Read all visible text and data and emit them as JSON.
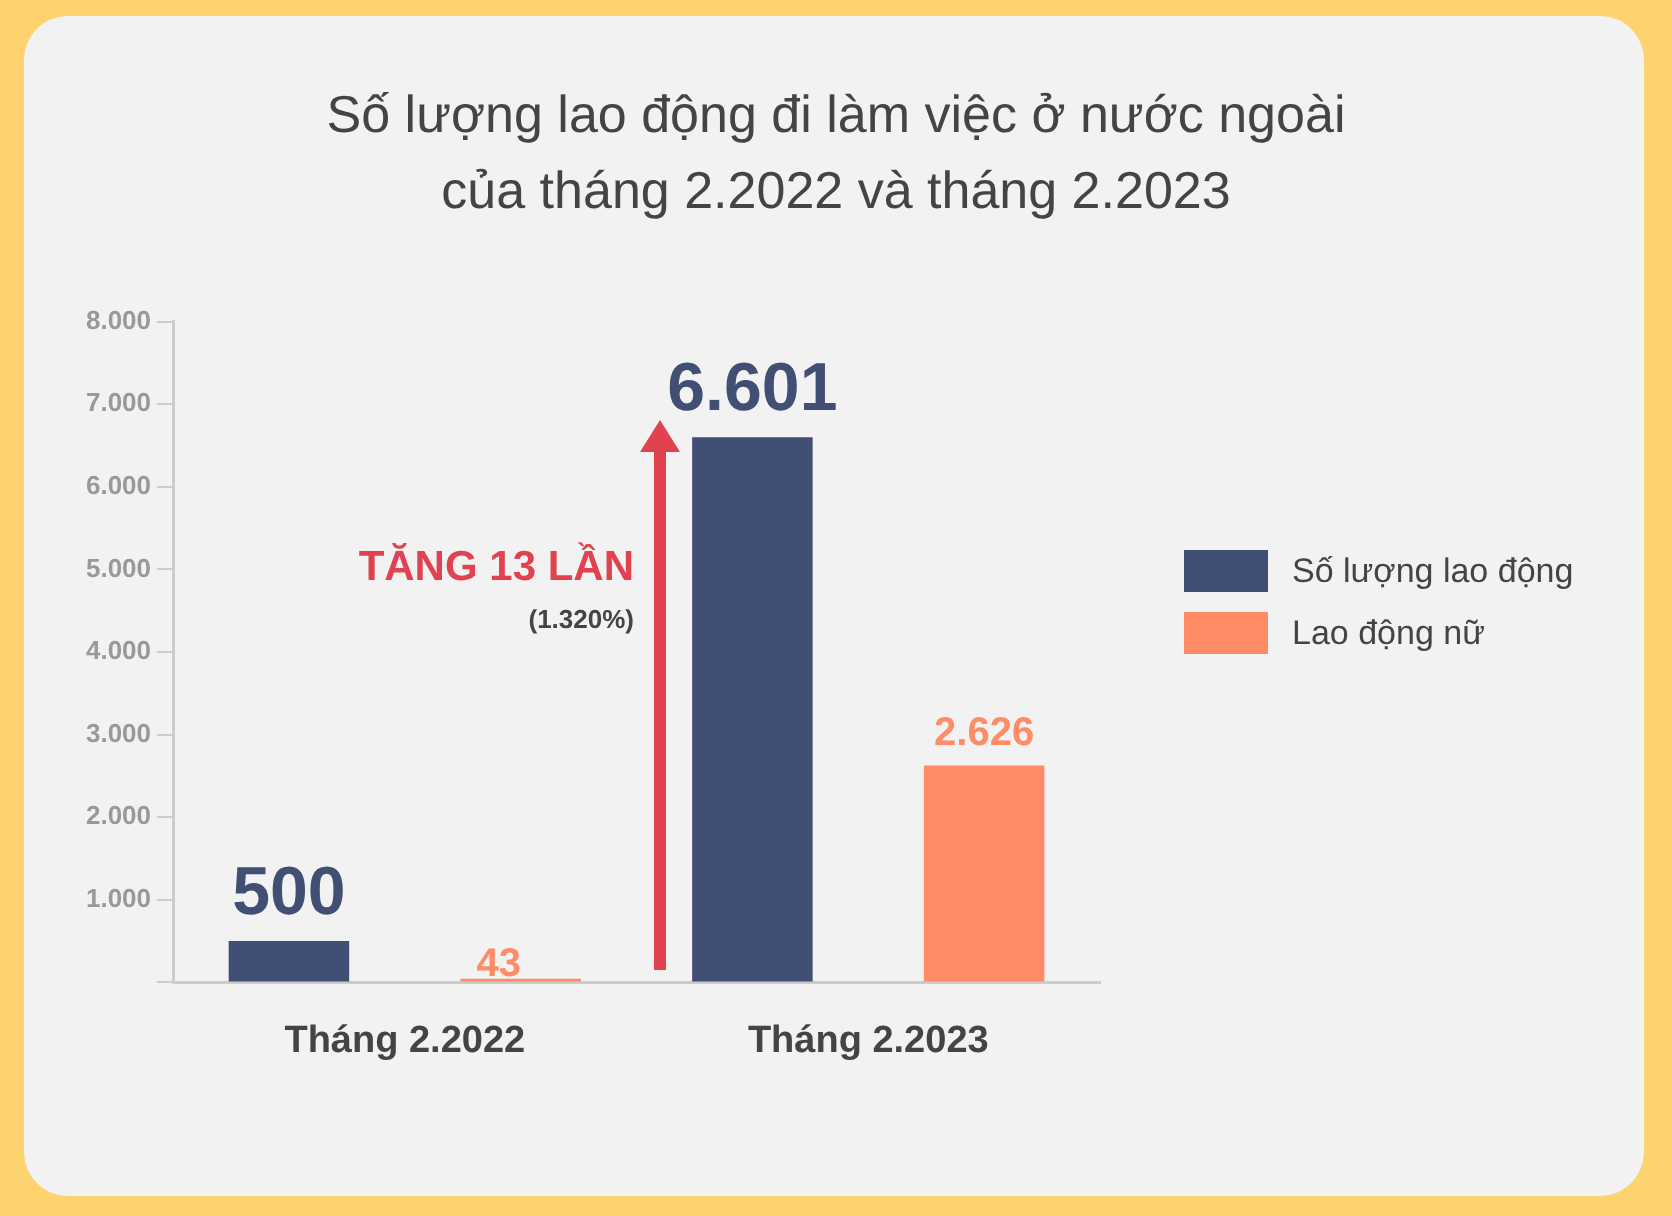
{
  "chart_data": {
    "type": "bar",
    "title": "Số lượng lao động đi làm việc ở nước ngoài của tháng 2.2022 và tháng 2.2023",
    "categories": [
      "Tháng 2.2022",
      "Tháng 2.2023"
    ],
    "series": [
      {
        "name": "Số lượng lao động",
        "color": "#424f75",
        "values": [
          500,
          6601
        ],
        "value_labels": [
          "500",
          "6.601"
        ]
      },
      {
        "name": "Lao động nữ",
        "color": "#ff8c64",
        "values": [
          43,
          2626
        ],
        "value_labels": [
          "43",
          "2.626"
        ]
      }
    ],
    "ylim": [
      0,
      8000
    ],
    "yticks": [
      {
        "value": 0,
        "label": null
      },
      {
        "value": 1000,
        "label": "1.000"
      },
      {
        "value": 2000,
        "label": "2.000"
      },
      {
        "value": 3000,
        "label": "3.000"
      },
      {
        "value": 4000,
        "label": "4.000"
      },
      {
        "value": 5000,
        "label": "5.000"
      },
      {
        "value": 6000,
        "label": "6.000"
      },
      {
        "value": 7000,
        "label": "7.000"
      },
      {
        "value": 8000,
        "label": "8.000"
      }
    ],
    "annotations": [
      "TĂNG 13 LẦN",
      "(1.320%)"
    ],
    "legend": "right",
    "grid": false
  }
}
